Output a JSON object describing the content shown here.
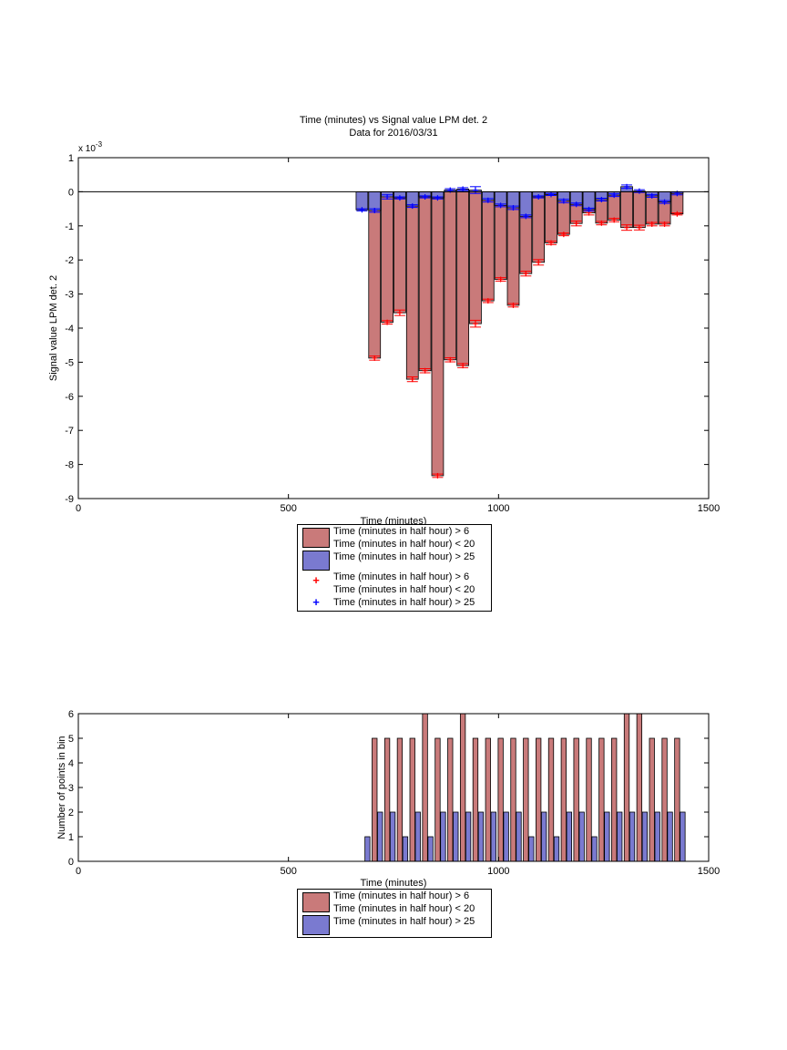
{
  "colors": {
    "red_bar": "#c97a7a",
    "blue_bar": "#7a7ad0",
    "red_mark": "#ff0000",
    "blue_mark": "#0000ff"
  },
  "chart_data": [
    {
      "type": "bar",
      "title": "Time (minutes) vs Signal value LPM det. 2",
      "subtitle": "Data for 2016/03/31",
      "xlabel": "Time (minutes)",
      "ylabel": "Signal value LPM det. 2",
      "exponent_label": "x 10",
      "exponent_power": "-3",
      "xlim": [
        0,
        1500
      ],
      "ylim": [
        -9,
        1
      ],
      "xticks": [
        "0",
        "500",
        "1000",
        "1500"
      ],
      "yticks": [
        "1",
        "0",
        "-1",
        "-2",
        "-3",
        "-4",
        "-5",
        "-6",
        "-7",
        "-8",
        "-9"
      ],
      "ytick_values": [
        1,
        0,
        -1,
        -2,
        -3,
        -4,
        -5,
        -6,
        -7,
        -8,
        -9
      ],
      "grid": false,
      "legend_position": "below",
      "series": [
        {
          "name": "Time (minutes in half hour) > 6\nTime (minutes in half hour) < 20",
          "x": [
            705,
            735,
            765,
            795,
            825,
            855,
            885,
            915,
            945,
            975,
            1005,
            1035,
            1065,
            1095,
            1125,
            1155,
            1185,
            1215,
            1245,
            1275,
            1305,
            1335,
            1365,
            1395,
            1425
          ],
          "values": [
            -4.88,
            -3.83,
            -3.55,
            -5.5,
            -5.25,
            -8.33,
            -4.93,
            -5.1,
            -3.87,
            -3.2,
            -2.57,
            -3.33,
            -2.4,
            -2.07,
            -1.5,
            -1.25,
            -0.93,
            -0.62,
            -0.92,
            -0.83,
            -1.05,
            -1.05,
            -0.95,
            -0.95,
            -0.65
          ],
          "errors": [
            0.06,
            0.05,
            0.08,
            0.07,
            0.06,
            0.05,
            0.06,
            0.06,
            0.1,
            0.05,
            0.05,
            0.05,
            0.07,
            0.08,
            0.05,
            0.04,
            0.07,
            0.06,
            0.05,
            0.05,
            0.08,
            0.07,
            0.05,
            0.05,
            0.03
          ]
        },
        {
          "name": "Time (minutes in half hour) > 25",
          "x": [
            675,
            705,
            735,
            765,
            795,
            825,
            855,
            885,
            915,
            945,
            975,
            1005,
            1035,
            1065,
            1095,
            1125,
            1155,
            1185,
            1215,
            1245,
            1275,
            1305,
            1335,
            1365,
            1395,
            1425
          ],
          "values": [
            -0.53,
            -0.55,
            -0.15,
            -0.18,
            -0.42,
            -0.15,
            -0.18,
            0.05,
            0.08,
            0.05,
            -0.25,
            -0.4,
            -0.47,
            -0.72,
            -0.15,
            -0.08,
            -0.27,
            -0.37,
            -0.52,
            -0.23,
            -0.1,
            0.15,
            0.02,
            -0.12,
            -0.3,
            -0.05
          ],
          "errors": [
            0.03,
            0.05,
            0.06,
            0.03,
            0.04,
            0.03,
            0.03,
            0.04,
            0.04,
            0.1,
            0.05,
            0.04,
            0.05,
            0.04,
            0.03,
            0.03,
            0.05,
            0.04,
            0.04,
            0.04,
            0.04,
            0.05,
            0.04,
            0.04,
            0.04,
            0.04
          ]
        }
      ],
      "legend": [
        {
          "label1": "Time (minutes in half hour) > 6",
          "label2": "Time (minutes in half hour) < 20"
        },
        {
          "label1": "Time (minutes in half hour) > 25"
        },
        {
          "label1": "Time (minutes in half hour) > 6",
          "label2": "Time (minutes in half hour) < 20"
        },
        {
          "label1": "Time (minutes in half hour) > 25"
        }
      ]
    },
    {
      "type": "bar",
      "xlabel": "Time (minutes)",
      "ylabel": "Number of points in bin",
      "xlim": [
        0,
        1500
      ],
      "ylim": [
        0,
        6
      ],
      "xticks": [
        "0",
        "500",
        "1000",
        "1500"
      ],
      "yticks": [
        "6",
        "5",
        "4",
        "3",
        "2",
        "1",
        "0"
      ],
      "ytick_values": [
        6,
        5,
        4,
        3,
        2,
        1,
        0
      ],
      "grid": false,
      "legend_position": "below",
      "series": [
        {
          "name": "Time (minutes in half hour) > 6\nTime (minutes in half hour) < 20",
          "x": [
            705,
            735,
            765,
            795,
            825,
            855,
            885,
            915,
            945,
            975,
            1005,
            1035,
            1065,
            1095,
            1125,
            1155,
            1185,
            1215,
            1245,
            1275,
            1305,
            1335,
            1365,
            1395,
            1425
          ],
          "values": [
            5,
            5,
            5,
            5,
            6,
            5,
            5,
            6,
            5,
            5,
            5,
            5,
            5,
            5,
            5,
            5,
            5,
            5,
            5,
            5,
            6,
            6,
            5,
            5,
            5
          ]
        },
        {
          "name": "Time (minutes in half hour) > 25",
          "x": [
            675,
            705,
            735,
            765,
            795,
            825,
            855,
            885,
            915,
            945,
            975,
            1005,
            1035,
            1065,
            1095,
            1125,
            1155,
            1185,
            1215,
            1245,
            1275,
            1305,
            1335,
            1365,
            1395,
            1425
          ],
          "values": [
            1,
            2,
            2,
            1,
            2,
            1,
            2,
            2,
            2,
            2,
            2,
            2,
            2,
            1,
            2,
            1,
            2,
            2,
            1,
            2,
            2,
            2,
            2,
            2,
            2,
            2
          ]
        }
      ],
      "legend": [
        {
          "label1": "Time (minutes in half hour) > 6",
          "label2": "Time (minutes in half hour) < 20"
        },
        {
          "label1": "Time (minutes in half hour) > 25"
        }
      ]
    }
  ]
}
